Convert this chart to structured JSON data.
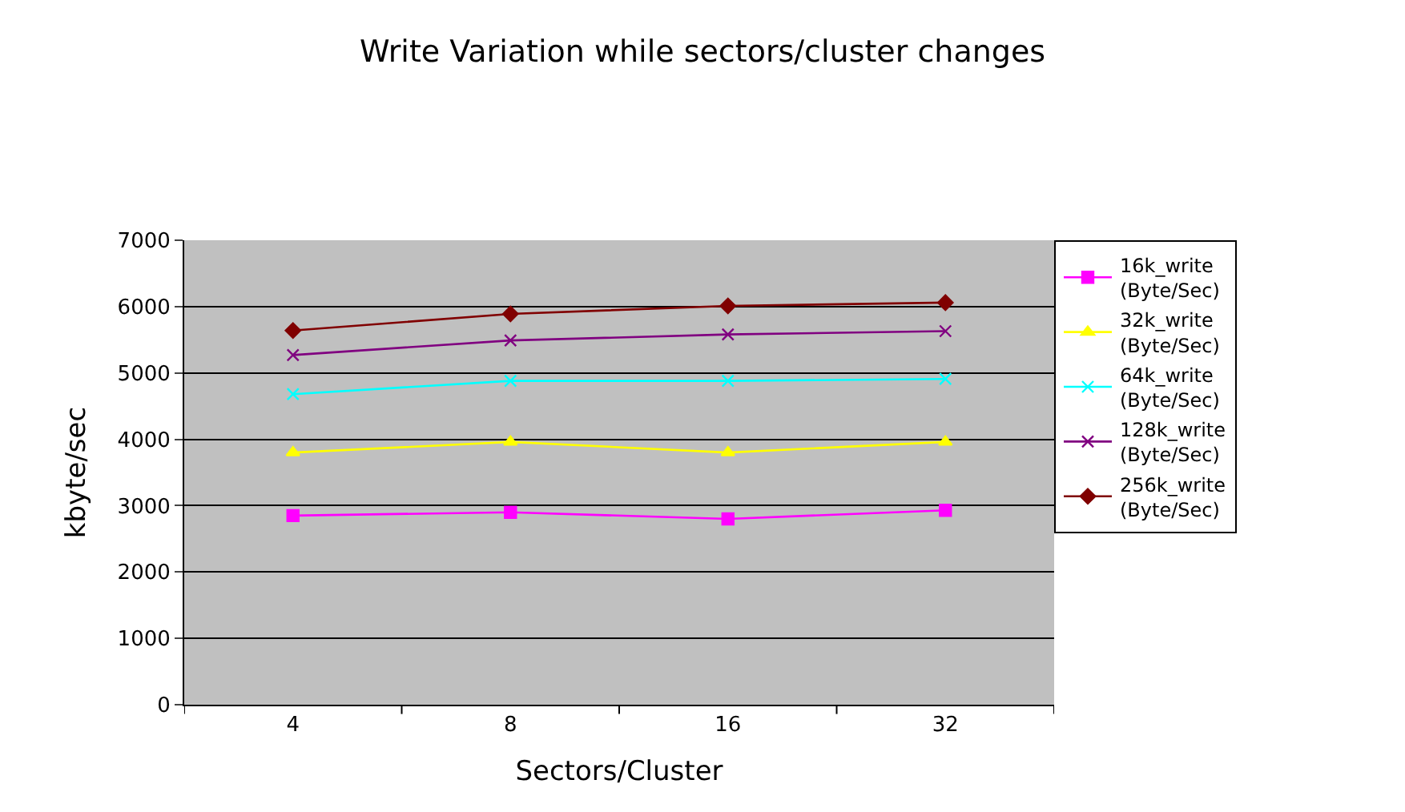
{
  "chart_data": {
    "type": "line",
    "title": "Write Variation while sectors/cluster changes",
    "xlabel": "Sectors/Cluster",
    "ylabel": "kbyte/sec",
    "categories": [
      "4",
      "8",
      "16",
      "32"
    ],
    "series": [
      {
        "name": "16k_write\n(Byte/Sec)",
        "color": "#ff00ff",
        "marker": "square",
        "values": [
          2850,
          2900,
          2800,
          2930
        ]
      },
      {
        "name": "32k_write\n(Byte/Sec)",
        "color": "#ffff00",
        "marker": "triangle",
        "values": [
          3800,
          3960,
          3800,
          3960
        ]
      },
      {
        "name": "64k_write\n(Byte/Sec)",
        "color": "#00ffff",
        "marker": "cross",
        "values": [
          4680,
          4880,
          4880,
          4910
        ]
      },
      {
        "name": "128k_write\n(Byte/Sec)",
        "color": "#800080",
        "marker": "cross",
        "values": [
          5270,
          5490,
          5580,
          5630
        ]
      },
      {
        "name": "256k_write\n(Byte/Sec)",
        "color": "#800000",
        "marker": "diamond",
        "values": [
          5640,
          5890,
          6010,
          6060
        ]
      }
    ],
    "ylim": [
      0,
      7000
    ],
    "yticks": [
      0,
      1000,
      2000,
      3000,
      4000,
      5000,
      6000,
      7000
    ],
    "grid": "y",
    "legend": "right"
  }
}
